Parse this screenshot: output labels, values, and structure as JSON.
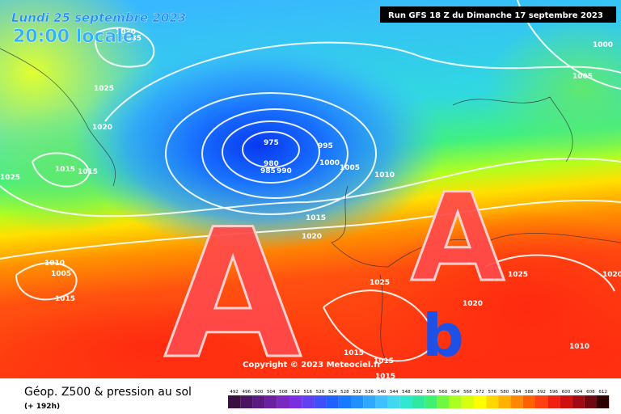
{
  "header": {
    "date": "Lundi 25 septembre 2023",
    "time": "20:00 locale",
    "run": "Run GFS 18 Z du Dimanche 17 septembre 2023"
  },
  "map": {
    "isobar_labels": [
      "1030",
      "1035",
      "1025",
      "1020",
      "1015",
      "1015",
      "1025",
      "975",
      "980",
      "985",
      "990",
      "995",
      "1000",
      "1005",
      "1010",
      "1015",
      "1020",
      "1000",
      "1005",
      "1010",
      "1005",
      "1015",
      "1025",
      "1025",
      "1020",
      "1015",
      "1015",
      "1015",
      "1010",
      "1020"
    ],
    "highs": [
      "A",
      "A"
    ],
    "low": "b",
    "copyright": "Copyright © 2023 Meteociel.fr"
  },
  "footer": {
    "title": "Géop. Z500 & pression au sol",
    "lead": "(+ 192h)"
  },
  "legend": {
    "steps": [
      {
        "label": "492",
        "color": "#3a1040"
      },
      {
        "label": "496",
        "color": "#4a1460"
      },
      {
        "label": "500",
        "color": "#5a1a80"
      },
      {
        "label": "504",
        "color": "#6a20a0"
      },
      {
        "label": "508",
        "color": "#7a28c0"
      },
      {
        "label": "512",
        "color": "#7a30e0"
      },
      {
        "label": "516",
        "color": "#6040f0"
      },
      {
        "label": "520",
        "color": "#4050f8"
      },
      {
        "label": "524",
        "color": "#2060ff"
      },
      {
        "label": "528",
        "color": "#1878ff"
      },
      {
        "label": "532",
        "color": "#2090ff"
      },
      {
        "label": "536",
        "color": "#30a8ff"
      },
      {
        "label": "540",
        "color": "#40c0ff"
      },
      {
        "label": "544",
        "color": "#40d8f0"
      },
      {
        "label": "548",
        "color": "#30e8d0"
      },
      {
        "label": "552",
        "color": "#30e8a0"
      },
      {
        "label": "556",
        "color": "#40f070"
      },
      {
        "label": "560",
        "color": "#70f840"
      },
      {
        "label": "564",
        "color": "#a8ff20"
      },
      {
        "label": "568",
        "color": "#d8ff10"
      },
      {
        "label": "572",
        "color": "#ffff00"
      },
      {
        "label": "576",
        "color": "#ffd800"
      },
      {
        "label": "580",
        "color": "#ffb000"
      },
      {
        "label": "584",
        "color": "#ff8800"
      },
      {
        "label": "588",
        "color": "#ff6000"
      },
      {
        "label": "592",
        "color": "#ff4010"
      },
      {
        "label": "596",
        "color": "#f02010"
      },
      {
        "label": "600",
        "color": "#d01010"
      },
      {
        "label": "604",
        "color": "#a00a10"
      },
      {
        "label": "608",
        "color": "#700810"
      },
      {
        "label": "612",
        "color": "#300000"
      }
    ]
  }
}
